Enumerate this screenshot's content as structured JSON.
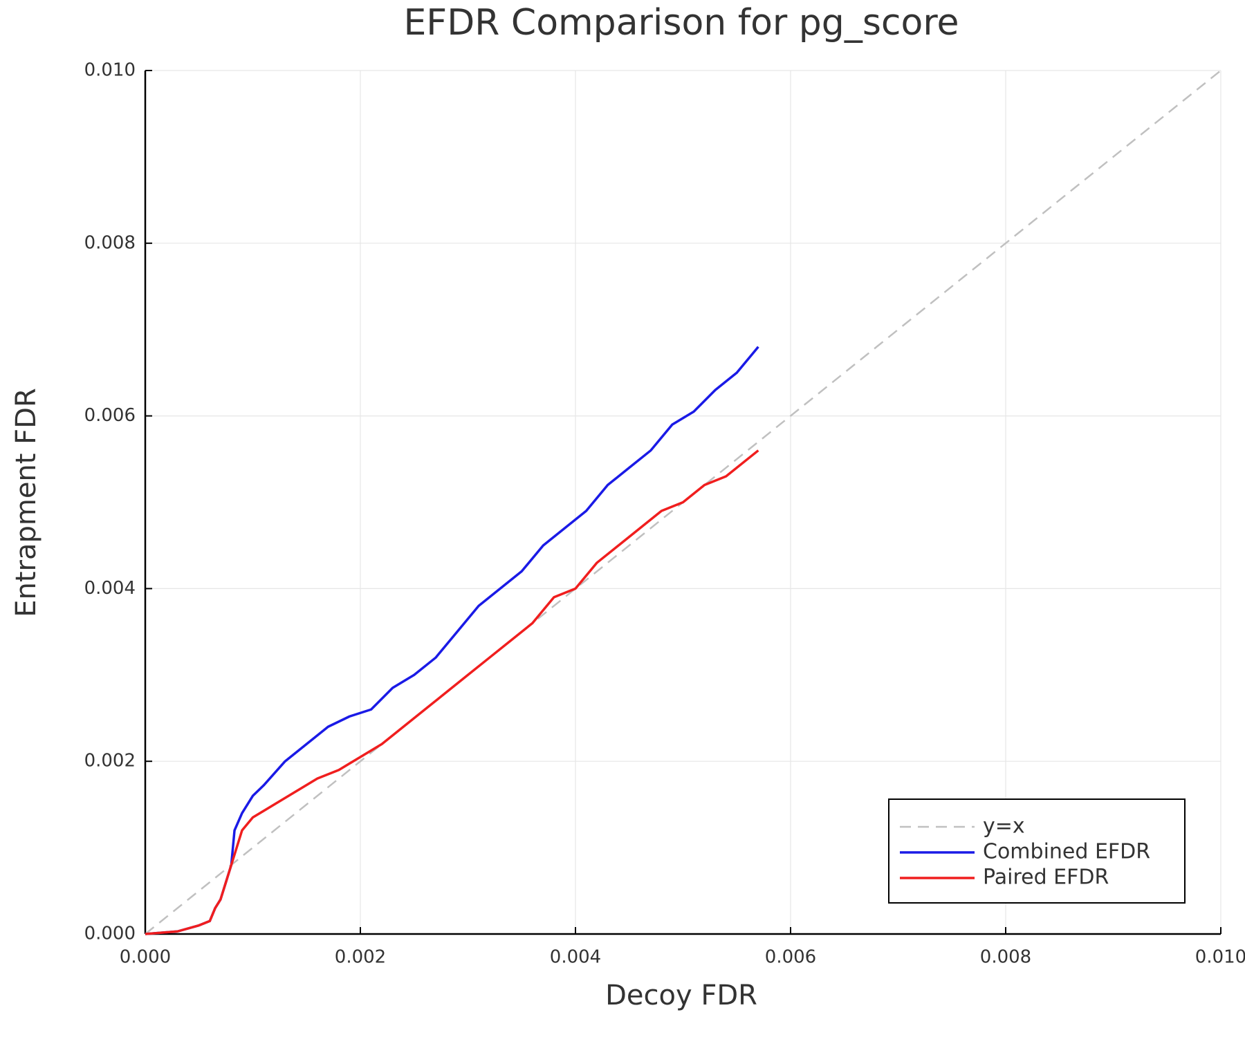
{
  "chart_data": {
    "type": "line",
    "title": "EFDR Comparison for pg_score",
    "x_label": "Decoy FDR",
    "y_label": "Entrapment FDR",
    "xlim": [
      0,
      0.01
    ],
    "ylim": [
      0,
      0.01
    ],
    "xticks": [
      {
        "value": 0,
        "label": "0.000"
      },
      {
        "value": 0.002,
        "label": "0.002"
      },
      {
        "value": 0.004,
        "label": "0.004"
      },
      {
        "value": 0.006,
        "label": "0.006"
      },
      {
        "value": 0.008,
        "label": "0.008"
      },
      {
        "value": 0.01,
        "label": "0.010"
      }
    ],
    "yticks": [
      {
        "value": 0,
        "label": "0.000"
      },
      {
        "value": 0.002,
        "label": "0.002"
      },
      {
        "value": 0.004,
        "label": "0.004"
      },
      {
        "value": 0.006,
        "label": "0.006"
      },
      {
        "value": 0.008,
        "label": "0.008"
      },
      {
        "value": 0.01,
        "label": "0.010"
      }
    ],
    "grid": true,
    "legend": "bottom-right",
    "series": [
      {
        "name": "y=x",
        "color": "#c0c0c0",
        "style": "dashed",
        "x": [
          0,
          0.01
        ],
        "values": [
          0,
          0.01
        ]
      },
      {
        "name": "Combined EFDR",
        "color": "#1a1ae6",
        "style": "solid",
        "x": [
          0,
          0.0003,
          0.0005,
          0.0006,
          0.00065,
          0.0007,
          0.00075,
          0.0008,
          0.00083,
          0.0009,
          0.001,
          0.0011,
          0.0013,
          0.0015,
          0.0017,
          0.0019,
          0.0021,
          0.0023,
          0.0025,
          0.0027,
          0.0029,
          0.0031,
          0.0033,
          0.0035,
          0.0037,
          0.0039,
          0.0041,
          0.0043,
          0.0045,
          0.0047,
          0.0049,
          0.0051,
          0.0053,
          0.0055,
          0.0057
        ],
        "values": [
          0,
          3e-05,
          0.0001,
          0.00015,
          0.0003,
          0.0004,
          0.0006,
          0.0008,
          0.0012,
          0.0014,
          0.0016,
          0.00172,
          0.002,
          0.0022,
          0.0024,
          0.00252,
          0.0026,
          0.00285,
          0.003,
          0.0032,
          0.0035,
          0.0038,
          0.004,
          0.0042,
          0.0045,
          0.0047,
          0.0049,
          0.0052,
          0.0054,
          0.0056,
          0.0059,
          0.00605,
          0.0063,
          0.0065,
          0.0068
        ]
      },
      {
        "name": "Paired EFDR",
        "color": "#f01e1e",
        "style": "solid",
        "x": [
          0,
          0.0003,
          0.0005,
          0.0006,
          0.00065,
          0.0007,
          0.00075,
          0.0008,
          0.00085,
          0.0009,
          0.001,
          0.0012,
          0.0014,
          0.0016,
          0.0018,
          0.002,
          0.0022,
          0.0024,
          0.0026,
          0.0028,
          0.003,
          0.0032,
          0.0034,
          0.0036,
          0.0038,
          0.004,
          0.0042,
          0.0044,
          0.0046,
          0.0048,
          0.005,
          0.0052,
          0.0054,
          0.0057
        ],
        "values": [
          0,
          3e-05,
          0.0001,
          0.00015,
          0.0003,
          0.0004,
          0.0006,
          0.0008,
          0.001,
          0.0012,
          0.00135,
          0.0015,
          0.00165,
          0.0018,
          0.0019,
          0.00205,
          0.0022,
          0.0024,
          0.0026,
          0.0028,
          0.003,
          0.0032,
          0.0034,
          0.0036,
          0.0039,
          0.004,
          0.0043,
          0.0045,
          0.0047,
          0.0049,
          0.005,
          0.0052,
          0.0053,
          0.0056
        ]
      }
    ]
  }
}
